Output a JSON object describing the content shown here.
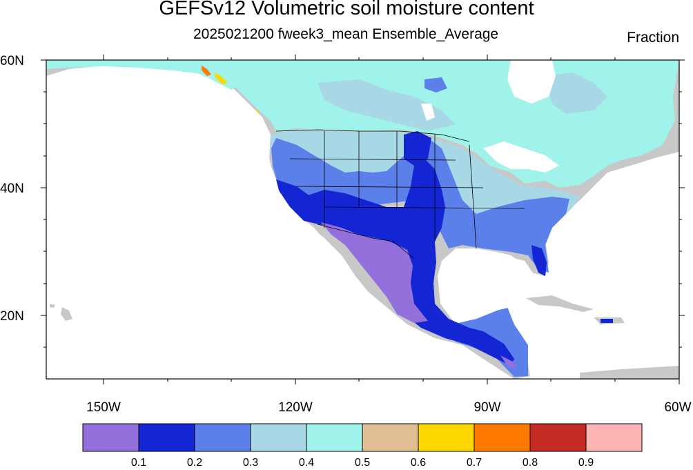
{
  "header": {
    "title": "GEFSv12 Volumetric soil moisture content",
    "subtitle": "2025021200 fweek3_mean Ensemble_Average",
    "units": "Fraction"
  },
  "axes": {
    "lat_labels": [
      "60N",
      "40N",
      "20N"
    ],
    "lon_labels": [
      "150W",
      "120W",
      "90W",
      "60W"
    ]
  },
  "colorbar": {
    "colors": [
      "#9370db",
      "#1426d4",
      "#5b80ea",
      "#a8d7e6",
      "#9ff3ea",
      "#dfbf93",
      "#ffd700",
      "#ff7b00",
      "#c42b22",
      "#ffb4b4"
    ],
    "labels": [
      "0.1",
      "0.2",
      "0.3",
      "0.4",
      "0.5",
      "0.6",
      "0.7",
      "0.8",
      "0.9"
    ]
  },
  "map": {
    "region": "North America",
    "lat_range": [
      10,
      60
    ],
    "lon_range": [
      -160,
      -60
    ],
    "missing_color": "#c8c8c8"
  }
}
